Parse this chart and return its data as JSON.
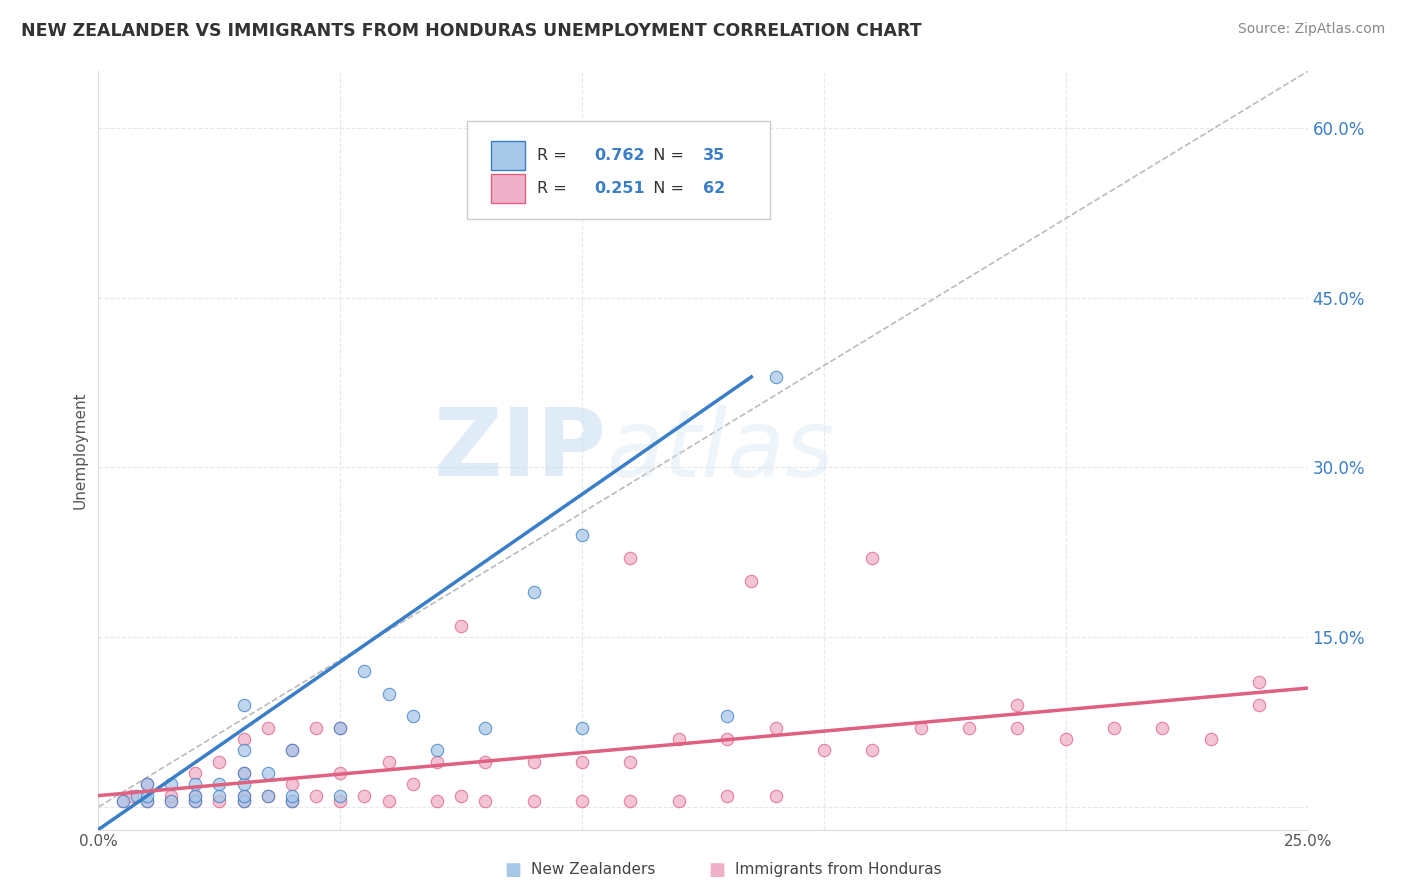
{
  "title": "NEW ZEALANDER VS IMMIGRANTS FROM HONDURAS UNEMPLOYMENT CORRELATION CHART",
  "source": "Source: ZipAtlas.com",
  "xlabel": "",
  "ylabel": "Unemployment",
  "xlim": [
    0.0,
    0.25
  ],
  "ylim": [
    -0.02,
    0.65
  ],
  "xticks": [
    0.0,
    0.05,
    0.1,
    0.15,
    0.2,
    0.25
  ],
  "xticklabels": [
    "0.0%",
    "",
    "",
    "",
    "",
    "25.0%"
  ],
  "ytick_positions": [
    0.0,
    0.15,
    0.3,
    0.45,
    0.6
  ],
  "ytick_labels": [
    "",
    "15.0%",
    "30.0%",
    "45.0%",
    "60.0%"
  ],
  "nz_color": "#A8C8E8",
  "nz_line_color": "#3A7EC8",
  "honduras_color": "#F0B0C8",
  "honduras_line_color": "#E06080",
  "ref_line_color": "#BBBBBB",
  "nz_R": 0.762,
  "nz_N": 35,
  "honduras_R": 0.251,
  "honduras_N": 62,
  "background_color": "#FFFFFF",
  "grid_color": "#E8E8E8",
  "watermark_zip": "ZIP",
  "watermark_atlas": "atlas",
  "nz_x": [
    0.005,
    0.008,
    0.01,
    0.01,
    0.01,
    0.015,
    0.015,
    0.02,
    0.02,
    0.02,
    0.025,
    0.025,
    0.03,
    0.03,
    0.03,
    0.03,
    0.03,
    0.03,
    0.035,
    0.035,
    0.04,
    0.04,
    0.04,
    0.05,
    0.05,
    0.055,
    0.06,
    0.065,
    0.07,
    0.08,
    0.09,
    0.1,
    0.1,
    0.13,
    0.14
  ],
  "nz_y": [
    0.005,
    0.01,
    0.005,
    0.01,
    0.02,
    0.005,
    0.02,
    0.005,
    0.01,
    0.02,
    0.01,
    0.02,
    0.005,
    0.01,
    0.02,
    0.03,
    0.05,
    0.09,
    0.01,
    0.03,
    0.005,
    0.01,
    0.05,
    0.01,
    0.07,
    0.12,
    0.1,
    0.08,
    0.05,
    0.07,
    0.19,
    0.24,
    0.07,
    0.08,
    0.38
  ],
  "h_x": [
    0.005,
    0.007,
    0.01,
    0.01,
    0.015,
    0.015,
    0.02,
    0.02,
    0.02,
    0.025,
    0.025,
    0.03,
    0.03,
    0.03,
    0.03,
    0.035,
    0.035,
    0.04,
    0.04,
    0.04,
    0.045,
    0.045,
    0.05,
    0.05,
    0.05,
    0.055,
    0.06,
    0.06,
    0.065,
    0.07,
    0.07,
    0.075,
    0.08,
    0.08,
    0.09,
    0.09,
    0.1,
    0.1,
    0.11,
    0.11,
    0.12,
    0.12,
    0.13,
    0.13,
    0.14,
    0.14,
    0.15,
    0.16,
    0.17,
    0.18,
    0.19,
    0.2,
    0.21,
    0.22,
    0.23,
    0.24,
    0.135,
    0.19,
    0.075,
    0.11,
    0.16,
    0.24
  ],
  "h_y": [
    0.005,
    0.01,
    0.005,
    0.02,
    0.005,
    0.01,
    0.005,
    0.01,
    0.03,
    0.005,
    0.04,
    0.005,
    0.01,
    0.03,
    0.06,
    0.01,
    0.07,
    0.005,
    0.02,
    0.05,
    0.01,
    0.07,
    0.005,
    0.03,
    0.07,
    0.01,
    0.005,
    0.04,
    0.02,
    0.005,
    0.04,
    0.01,
    0.005,
    0.04,
    0.005,
    0.04,
    0.005,
    0.04,
    0.005,
    0.04,
    0.005,
    0.06,
    0.01,
    0.06,
    0.01,
    0.07,
    0.05,
    0.05,
    0.07,
    0.07,
    0.07,
    0.06,
    0.07,
    0.07,
    0.06,
    0.09,
    0.2,
    0.09,
    0.16,
    0.22,
    0.22,
    0.11
  ],
  "nz_trend_x0": 0.0,
  "nz_trend_y0": -0.02,
  "nz_trend_x1": 0.135,
  "nz_trend_y1": 0.38,
  "h_trend_x0": 0.0,
  "h_trend_y0": 0.01,
  "h_trend_x1": 0.25,
  "h_trend_y1": 0.105
}
